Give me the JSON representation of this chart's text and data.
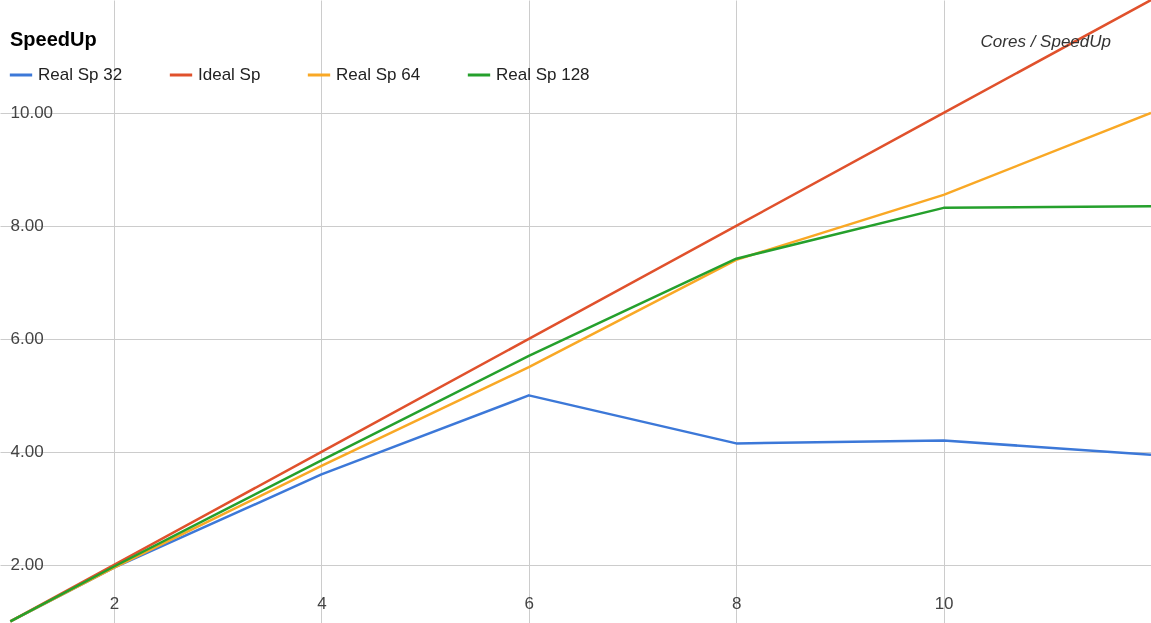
{
  "chart_data": {
    "type": "line",
    "title": "SpeedUp",
    "annotations": [
      "Cores / SpeedUp"
    ],
    "x": [
      1,
      2,
      4,
      6,
      8,
      10,
      12
    ],
    "series": [
      {
        "name": "Real Sp 32",
        "color": "#3c78d8",
        "values": [
          1,
          1.95,
          3.6,
          5.0,
          4.15,
          4.2,
          3.95
        ]
      },
      {
        "name": "Ideal Sp",
        "color": "#e0512c",
        "values": [
          1,
          2,
          4,
          6,
          8,
          10,
          12
        ]
      },
      {
        "name": "Real Sp 64",
        "color": "#f9a825",
        "values": [
          1,
          1.95,
          3.75,
          5.5,
          7.4,
          8.55,
          10.0
        ]
      },
      {
        "name": "Real Sp 128",
        "color": "#25a02c",
        "values": [
          1,
          1.97,
          3.85,
          5.7,
          7.42,
          8.32,
          8.35
        ]
      }
    ],
    "xlim": [
      0.9,
      12
    ],
    "ylim": [
      0.97,
      12
    ],
    "xticks": [
      2,
      4,
      6,
      8,
      10
    ],
    "yticks": [
      {
        "value": 2,
        "label": "2.00"
      },
      {
        "value": 4,
        "label": "4.00"
      },
      {
        "value": 6,
        "label": "6.00"
      },
      {
        "value": 8,
        "label": "8.00"
      },
      {
        "value": 10,
        "label": "10.00"
      }
    ],
    "grid": true,
    "legend": "top left",
    "marker": "none",
    "line_style": "solid"
  }
}
